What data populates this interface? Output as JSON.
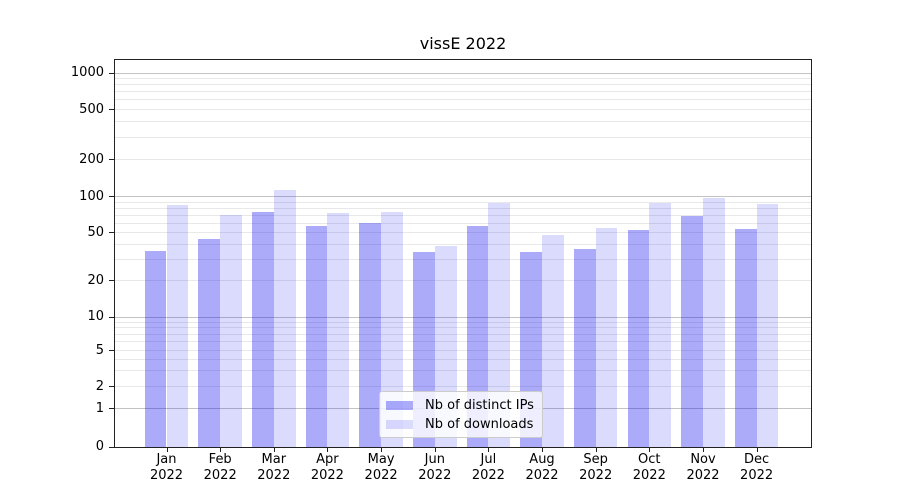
{
  "chart_data": {
    "type": "bar",
    "title": "vissE 2022",
    "categories": [
      "Jan",
      "Feb",
      "Mar",
      "Apr",
      "May",
      "Jun",
      "Jul",
      "Aug",
      "Sep",
      "Oct",
      "Nov",
      "Dec"
    ],
    "year_label": "2022",
    "series": [
      {
        "name": "Nb of distinct IPs",
        "color": "rgba(12,12,240,0.345)",
        "color_hex": "#a9a9f8",
        "values": [
          35,
          44,
          74,
          56,
          60,
          34,
          56,
          34,
          36,
          52,
          68,
          53
        ]
      },
      {
        "name": "Nb of downloads",
        "color": "rgba(12,12,240,0.15)",
        "color_hex": "#dadaf9",
        "values": [
          84,
          70,
          113,
          72,
          74,
          38,
          87,
          47,
          54,
          87,
          97,
          85
        ]
      }
    ],
    "xlabel": "",
    "ylabel": "",
    "yscale": "log-like (0,1,2,5,10,20,50,100,200,500,1000)",
    "yticks": [
      0,
      1,
      2,
      5,
      10,
      20,
      50,
      100,
      200,
      500,
      1000
    ],
    "ylim": [
      0,
      1260
    ],
    "grid": true,
    "legend_position": "lower-center"
  },
  "colors": {
    "background": "#ffffff",
    "grid_major": "#c3c3c3",
    "grid_minor": "#e8e8e8",
    "spine": "#222222",
    "text": "#000000",
    "legend_border": "#cccccc"
  }
}
